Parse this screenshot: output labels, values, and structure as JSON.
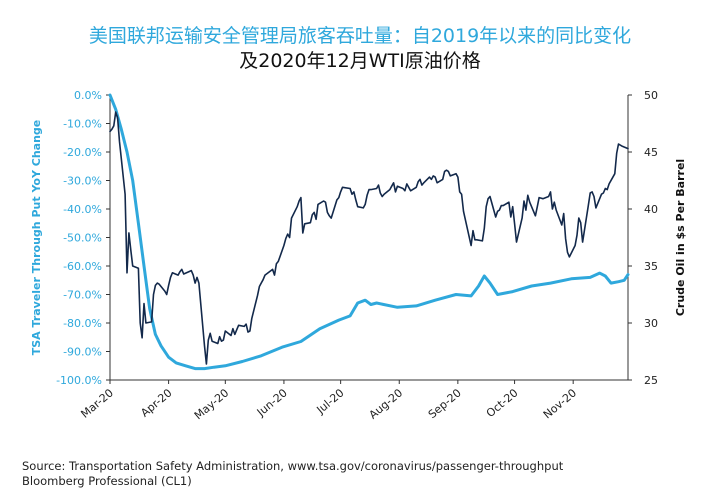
{
  "title_line1": "美国联邦运输安全管理局旅客吞吐量：自2019年以来的同比变化",
  "title_line2": "及2020年12月WTI原油价格",
  "source_line1": "Source: Transportation Safety Administration, www.tsa.gov/coronavirus/passenger-throughput",
  "source_line2": "Bloomberg Professional (CL1)",
  "colors": {
    "tsa": "#2fa8dc",
    "oil": "#13294b",
    "axis": "#333333"
  },
  "chart_data": {
    "type": "line",
    "xlabel": "",
    "x_ticks": [
      "Mar-20",
      "Apr-20",
      "May-20",
      "Jun-20",
      "Jul-20",
      "Aug-20",
      "Sep-20",
      "Oct-20",
      "Nov-20"
    ],
    "x_range": [
      "2020-03-01",
      "2020-11-30"
    ],
    "y_left": {
      "label": "TSA Traveler Through Put YoY Change",
      "range": [
        -100,
        0
      ],
      "ticks": [
        0,
        -10,
        -20,
        -30,
        -40,
        -50,
        -60,
        -70,
        -80,
        -90,
        -100
      ],
      "unit": "%"
    },
    "y_right": {
      "label": "Crude Oil in $s Per Barrel",
      "range": [
        25,
        50
      ],
      "ticks": [
        25,
        30,
        35,
        40,
        45,
        50
      ]
    },
    "series": [
      {
        "name": "TSA Traveler Through Put YoY Change",
        "axis": "left",
        "points": [
          [
            "2020-03-01",
            0
          ],
          [
            "2020-03-04",
            -5
          ],
          [
            "2020-03-07",
            -12
          ],
          [
            "2020-03-10",
            -20
          ],
          [
            "2020-03-13",
            -30
          ],
          [
            "2020-03-16",
            -45
          ],
          [
            "2020-03-19",
            -60
          ],
          [
            "2020-03-22",
            -75
          ],
          [
            "2020-03-25",
            -84
          ],
          [
            "2020-03-28",
            -88
          ],
          [
            "2020-04-01",
            -92
          ],
          [
            "2020-04-05",
            -94
          ],
          [
            "2020-04-10",
            -95
          ],
          [
            "2020-04-15",
            -96
          ],
          [
            "2020-04-20",
            -96
          ],
          [
            "2020-04-25",
            -95.5
          ],
          [
            "2020-05-01",
            -95
          ],
          [
            "2020-05-10",
            -93.5
          ],
          [
            "2020-05-20",
            -91.5
          ],
          [
            "2020-05-31",
            -88.5
          ],
          [
            "2020-06-10",
            -86.5
          ],
          [
            "2020-06-20",
            -82
          ],
          [
            "2020-06-30",
            -79
          ],
          [
            "2020-07-06",
            -77.5
          ],
          [
            "2020-07-10",
            -73
          ],
          [
            "2020-07-14",
            -72
          ],
          [
            "2020-07-17",
            -73.5
          ],
          [
            "2020-07-20",
            -73
          ],
          [
            "2020-07-31",
            -74.5
          ],
          [
            "2020-08-10",
            -74
          ],
          [
            "2020-08-20",
            -72
          ],
          [
            "2020-08-31",
            -70
          ],
          [
            "2020-09-08",
            -70.5
          ],
          [
            "2020-09-12",
            -67
          ],
          [
            "2020-09-15",
            -63.5
          ],
          [
            "2020-09-18",
            -66
          ],
          [
            "2020-09-22",
            -70
          ],
          [
            "2020-09-30",
            -69
          ],
          [
            "2020-10-10",
            -67
          ],
          [
            "2020-10-20",
            -66
          ],
          [
            "2020-10-31",
            -64.5
          ],
          [
            "2020-11-10",
            -64
          ],
          [
            "2020-11-15",
            -62.5
          ],
          [
            "2020-11-18",
            -63.5
          ],
          [
            "2020-11-21",
            -66
          ],
          [
            "2020-11-25",
            -65.5
          ],
          [
            "2020-11-28",
            -65
          ],
          [
            "2020-11-30",
            -63
          ]
        ]
      },
      {
        "name": "Crude Oil in $s Per Barrel",
        "axis": "right",
        "points": [
          [
            "2020-03-01",
            46.8
          ],
          [
            "2020-03-02",
            47
          ],
          [
            "2020-03-03",
            47.3
          ],
          [
            "2020-03-04",
            48.5
          ],
          [
            "2020-03-05",
            48
          ],
          [
            "2020-03-06",
            45.9
          ],
          [
            "2020-03-09",
            41.3
          ],
          [
            "2020-03-10",
            34.4
          ],
          [
            "2020-03-11",
            37.9
          ],
          [
            "2020-03-12",
            36.4
          ],
          [
            "2020-03-13",
            35
          ],
          [
            "2020-03-16",
            34.8
          ],
          [
            "2020-03-17",
            30
          ],
          [
            "2020-03-18",
            28.7
          ],
          [
            "2020-03-19",
            31.7
          ],
          [
            "2020-03-20",
            30
          ],
          [
            "2020-03-23",
            30.1
          ],
          [
            "2020-03-24",
            32.5
          ],
          [
            "2020-03-25",
            33.3
          ],
          [
            "2020-03-26",
            33.5
          ],
          [
            "2020-03-27",
            33.4
          ],
          [
            "2020-03-30",
            32.8
          ],
          [
            "2020-03-31",
            32.5
          ],
          [
            "2020-04-01",
            33.3
          ],
          [
            "2020-04-02",
            34
          ],
          [
            "2020-04-03",
            34.4
          ],
          [
            "2020-04-06",
            34.2
          ],
          [
            "2020-04-07",
            34.5
          ],
          [
            "2020-04-08",
            34.7
          ],
          [
            "2020-04-09",
            34.3
          ],
          [
            "2020-04-13",
            34.6
          ],
          [
            "2020-04-14",
            34.2
          ],
          [
            "2020-04-15",
            33.5
          ],
          [
            "2020-04-16",
            34
          ],
          [
            "2020-04-17",
            33.5
          ],
          [
            "2020-04-20",
            28
          ],
          [
            "2020-04-21",
            26.4
          ],
          [
            "2020-04-22",
            28.5
          ],
          [
            "2020-04-23",
            29.1
          ],
          [
            "2020-04-24",
            28.4
          ],
          [
            "2020-04-27",
            28.2
          ],
          [
            "2020-04-28",
            28.8
          ],
          [
            "2020-04-29",
            28.4
          ],
          [
            "2020-04-30",
            28.5
          ],
          [
            "2020-05-01",
            29.3
          ],
          [
            "2020-05-04",
            28.9
          ],
          [
            "2020-05-05",
            29.5
          ],
          [
            "2020-05-06",
            29
          ],
          [
            "2020-05-07",
            29.4
          ],
          [
            "2020-05-08",
            29.8
          ],
          [
            "2020-05-11",
            29.7
          ],
          [
            "2020-05-12",
            29.9
          ],
          [
            "2020-05-13",
            29.2
          ],
          [
            "2020-05-14",
            29.3
          ],
          [
            "2020-05-15",
            30.4
          ],
          [
            "2020-05-18",
            32.4
          ],
          [
            "2020-05-19",
            33.2
          ],
          [
            "2020-05-20",
            33.5
          ],
          [
            "2020-05-21",
            33.8
          ],
          [
            "2020-05-22",
            34.2
          ],
          [
            "2020-05-26",
            34.7
          ],
          [
            "2020-05-27",
            34.2
          ],
          [
            "2020-05-28",
            35.2
          ],
          [
            "2020-05-29",
            35.4
          ],
          [
            "2020-06-01",
            36.8
          ],
          [
            "2020-06-02",
            37.4
          ],
          [
            "2020-06-03",
            37.8
          ],
          [
            "2020-06-04",
            37.5
          ],
          [
            "2020-06-05",
            39.2
          ],
          [
            "2020-06-08",
            40.2
          ],
          [
            "2020-06-09",
            40.7
          ],
          [
            "2020-06-10",
            41
          ],
          [
            "2020-06-11",
            37.9
          ],
          [
            "2020-06-12",
            38.7
          ],
          [
            "2020-06-15",
            38.8
          ],
          [
            "2020-06-16",
            39.5
          ],
          [
            "2020-06-17",
            39.7
          ],
          [
            "2020-06-18",
            39.1
          ],
          [
            "2020-06-19",
            40.4
          ],
          [
            "2020-06-22",
            40.7
          ],
          [
            "2020-06-23",
            40.6
          ],
          [
            "2020-06-24",
            39.7
          ],
          [
            "2020-06-25",
            39.4
          ],
          [
            "2020-06-26",
            39.2
          ],
          [
            "2020-06-29",
            40.8
          ],
          [
            "2020-06-30",
            41
          ],
          [
            "2020-07-01",
            41.5
          ],
          [
            "2020-07-02",
            41.9
          ],
          [
            "2020-07-06",
            41.8
          ],
          [
            "2020-07-07",
            41.3
          ],
          [
            "2020-07-08",
            41.5
          ],
          [
            "2020-07-09",
            40.8
          ],
          [
            "2020-07-10",
            40.2
          ],
          [
            "2020-07-13",
            40.1
          ],
          [
            "2020-07-14",
            40.4
          ],
          [
            "2020-07-15",
            41.2
          ],
          [
            "2020-07-16",
            41.7
          ],
          [
            "2020-07-17",
            41.7
          ],
          [
            "2020-07-20",
            41.8
          ],
          [
            "2020-07-21",
            42.1
          ],
          [
            "2020-07-22",
            41.4
          ],
          [
            "2020-07-23",
            41.1
          ],
          [
            "2020-07-24",
            41.3
          ],
          [
            "2020-07-27",
            41.7
          ],
          [
            "2020-07-28",
            42
          ],
          [
            "2020-07-29",
            42.3
          ],
          [
            "2020-07-30",
            41.5
          ],
          [
            "2020-07-31",
            42
          ],
          [
            "2020-08-03",
            41.8
          ],
          [
            "2020-08-04",
            41.6
          ],
          [
            "2020-08-05",
            42.2
          ],
          [
            "2020-08-06",
            41.9
          ],
          [
            "2020-08-07",
            41.6
          ],
          [
            "2020-08-10",
            41.9
          ],
          [
            "2020-08-11",
            42.4
          ],
          [
            "2020-08-12",
            42.6
          ],
          [
            "2020-08-13",
            42.1
          ],
          [
            "2020-08-14",
            42.3
          ],
          [
            "2020-08-17",
            42.8
          ],
          [
            "2020-08-18",
            42.6
          ],
          [
            "2020-08-19",
            42.9
          ],
          [
            "2020-08-20",
            42.8
          ],
          [
            "2020-08-21",
            42.3
          ],
          [
            "2020-08-24",
            42.6
          ],
          [
            "2020-08-25",
            43.3
          ],
          [
            "2020-08-26",
            43.4
          ],
          [
            "2020-08-27",
            43.3
          ],
          [
            "2020-08-28",
            42.9
          ],
          [
            "2020-08-31",
            43.1
          ],
          [
            "2020-09-01",
            42.8
          ],
          [
            "2020-09-02",
            41.5
          ],
          [
            "2020-09-03",
            41.3
          ],
          [
            "2020-09-04",
            39.8
          ],
          [
            "2020-09-08",
            36.8
          ],
          [
            "2020-09-09",
            38.1
          ],
          [
            "2020-09-10",
            37.3
          ],
          [
            "2020-09-11",
            37.3
          ],
          [
            "2020-09-14",
            37.2
          ],
          [
            "2020-09-15",
            38.3
          ],
          [
            "2020-09-16",
            40.2
          ],
          [
            "2020-09-17",
            40.9
          ],
          [
            "2020-09-18",
            41.1
          ],
          [
            "2020-09-21",
            39.3
          ],
          [
            "2020-09-22",
            39.8
          ],
          [
            "2020-09-23",
            39.9
          ],
          [
            "2020-09-24",
            40.3
          ],
          [
            "2020-09-25",
            40.3
          ],
          [
            "2020-09-28",
            40.6
          ],
          [
            "2020-09-29",
            39.3
          ],
          [
            "2020-09-30",
            40.2
          ],
          [
            "2020-10-01",
            38.7
          ],
          [
            "2020-10-02",
            37.1
          ],
          [
            "2020-10-05",
            39.2
          ],
          [
            "2020-10-06",
            40.7
          ],
          [
            "2020-10-07",
            39.9
          ],
          [
            "2020-10-08",
            41.2
          ],
          [
            "2020-10-09",
            40.6
          ],
          [
            "2020-10-12",
            39.4
          ],
          [
            "2020-10-13",
            40.2
          ],
          [
            "2020-10-14",
            41
          ],
          [
            "2020-10-15",
            40.96
          ],
          [
            "2020-10-16",
            40.9
          ],
          [
            "2020-10-19",
            41.1
          ],
          [
            "2020-10-20",
            41.5
          ],
          [
            "2020-10-21",
            40
          ],
          [
            "2020-10-22",
            40.6
          ],
          [
            "2020-10-23",
            39.9
          ],
          [
            "2020-10-26",
            38.6
          ],
          [
            "2020-10-27",
            39.6
          ],
          [
            "2020-10-28",
            37.4
          ],
          [
            "2020-10-29",
            36.2
          ],
          [
            "2020-10-30",
            35.8
          ],
          [
            "2020-11-02",
            36.8
          ],
          [
            "2020-11-03",
            37.7
          ],
          [
            "2020-11-04",
            39.2
          ],
          [
            "2020-11-05",
            38.8
          ],
          [
            "2020-11-06",
            37.1
          ],
          [
            "2020-11-09",
            40.3
          ],
          [
            "2020-11-10",
            41.4
          ],
          [
            "2020-11-11",
            41.5
          ],
          [
            "2020-11-12",
            41.1
          ],
          [
            "2020-11-13",
            40.1
          ],
          [
            "2020-11-16",
            41.3
          ],
          [
            "2020-11-17",
            41.4
          ],
          [
            "2020-11-18",
            41.8
          ],
          [
            "2020-11-19",
            41.7
          ],
          [
            "2020-11-20",
            42.2
          ],
          [
            "2020-11-23",
            43.1
          ],
          [
            "2020-11-24",
            44.9
          ],
          [
            "2020-11-25",
            45.7
          ],
          [
            "2020-11-27",
            45.5
          ],
          [
            "2020-11-30",
            45.3
          ]
        ]
      }
    ],
    "grid": false,
    "legend": "none"
  }
}
